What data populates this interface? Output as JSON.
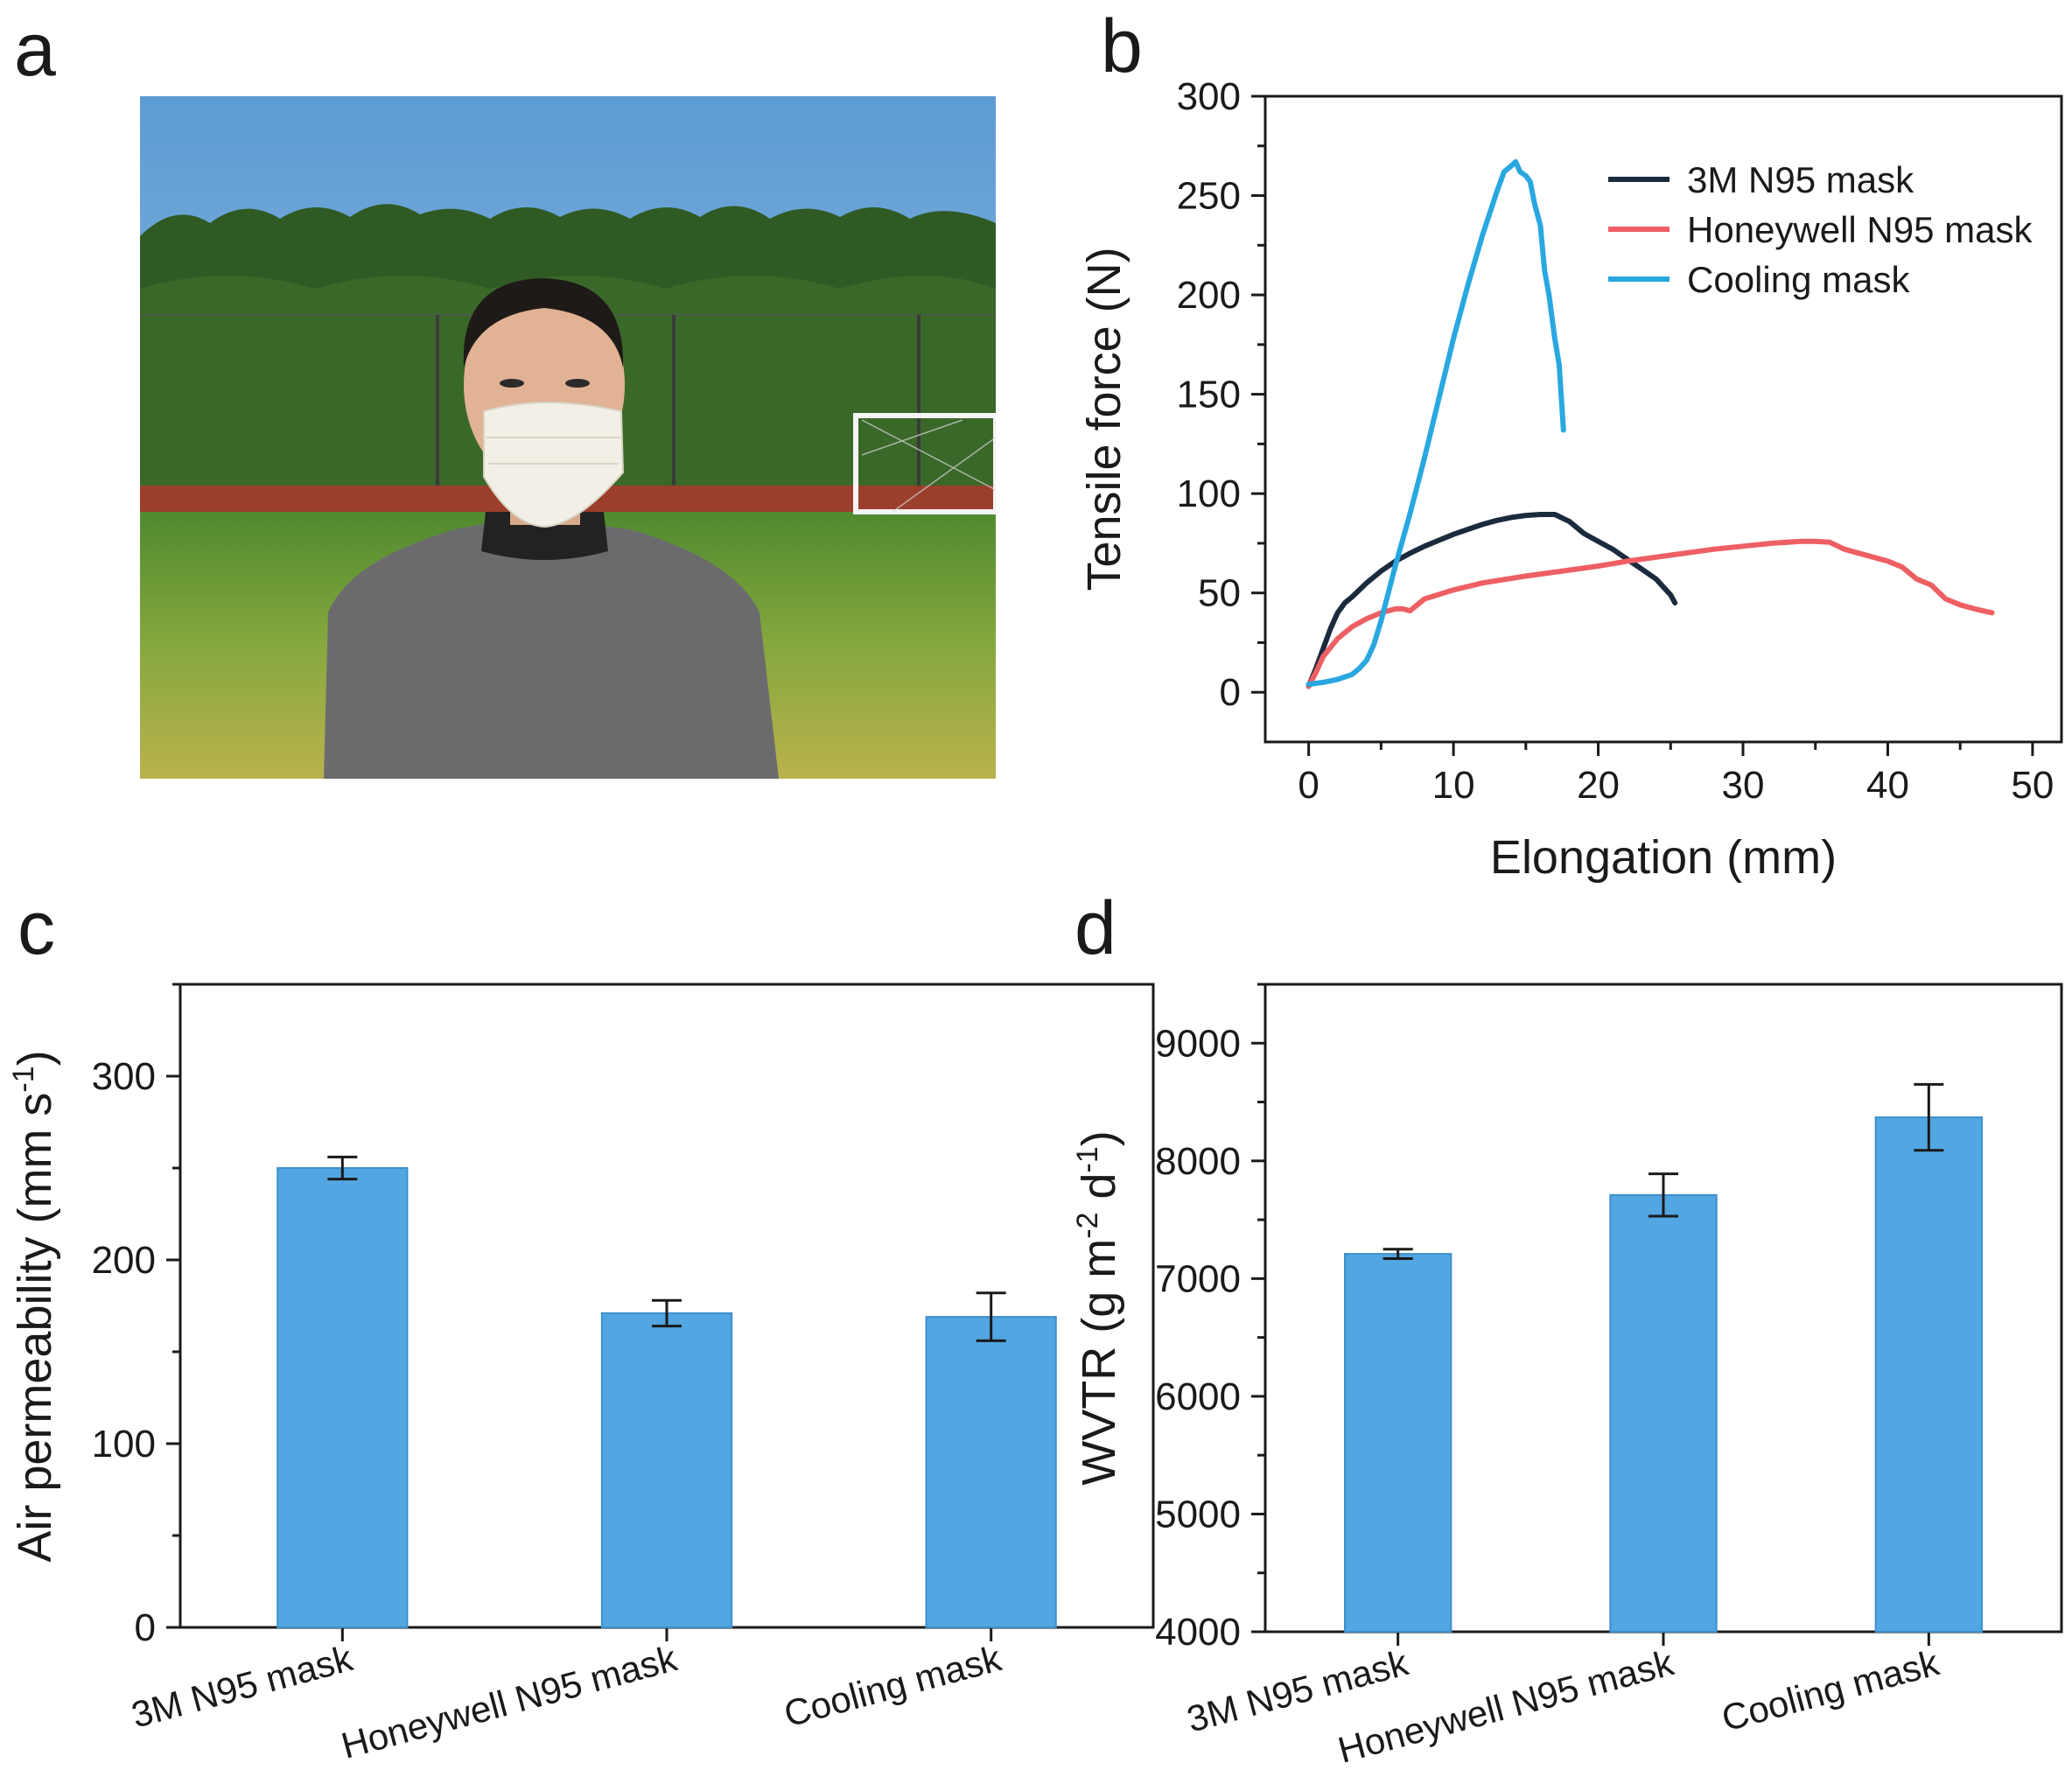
{
  "panels": {
    "a": {
      "label": "a",
      "photo_icon": "masked-person-photo-icon"
    },
    "b": {
      "label": "b"
    },
    "c": {
      "label": "c"
    },
    "d": {
      "label": "d"
    }
  },
  "colors": {
    "bar": "#52a6e1",
    "bar_edge": "#3d8fcb",
    "series_3m": "#1b2b3d",
    "series_honeywell": "#ee5f64",
    "series_cooling": "#29a8e0",
    "axis": "#1a1a1a"
  },
  "chart_data": [
    {
      "id": "b",
      "type": "line",
      "xlabel": "Elongation (mm)",
      "ylabel": "Tensile force (N)",
      "xlim": [
        -3,
        52
      ],
      "ylim": [
        -25,
        300
      ],
      "xticks": [
        0,
        10,
        20,
        30,
        40,
        50
      ],
      "yticks": [
        0,
        50,
        100,
        150,
        200,
        250,
        300
      ],
      "legend_position": "top-right",
      "series": [
        {
          "name": "3M N95 mask",
          "color_key": "series_3m",
          "x": [
            0,
            0.5,
            1,
            1.5,
            2,
            2.5,
            3,
            4,
            5,
            6,
            7,
            8,
            9,
            10,
            11,
            12,
            13,
            14,
            15,
            16,
            17,
            18,
            19,
            20,
            21,
            22,
            23,
            24,
            25,
            25.3
          ],
          "y": [
            3,
            12,
            22,
            32,
            40,
            45,
            48,
            55,
            61,
            66,
            70,
            73.5,
            76.5,
            79.5,
            82,
            84.5,
            86.5,
            88,
            89,
            89.5,
            89.5,
            86,
            80,
            76,
            72,
            67,
            62,
            57,
            49,
            45
          ]
        },
        {
          "name": "Honeywell N95 mask",
          "color_key": "series_honeywell",
          "x": [
            0,
            0.5,
            1,
            2,
            3,
            4,
            5,
            6,
            6.5,
            7,
            8,
            10,
            12,
            15,
            18,
            20,
            22,
            25,
            28,
            30,
            32,
            34,
            35,
            36,
            37,
            38,
            39,
            40,
            41,
            42,
            43,
            44,
            45,
            46,
            47.2
          ],
          "y": [
            3,
            10,
            18,
            27,
            33,
            37,
            40,
            42,
            42,
            41,
            47,
            51.5,
            55,
            58.5,
            61.5,
            63.5,
            66,
            69,
            72,
            73.5,
            75,
            76,
            76,
            75.5,
            72,
            70,
            68,
            66,
            63,
            57,
            54,
            47,
            44,
            42,
            40
          ]
        },
        {
          "name": "Cooling mask",
          "color_key": "series_cooling",
          "x": [
            0,
            1,
            2,
            3,
            3.5,
            4,
            4.5,
            5,
            5.5,
            6,
            7,
            8,
            9,
            10,
            11,
            12,
            13,
            13.5,
            14,
            14.3,
            14.6,
            15,
            15.3,
            15.6,
            16,
            16.3,
            16.6,
            17,
            17.3,
            17.6
          ],
          "y": [
            4,
            5,
            6.5,
            9,
            12,
            16,
            24,
            36,
            50,
            64,
            90,
            118,
            148,
            178,
            205,
            230,
            252,
            262,
            265,
            267,
            262,
            260,
            257,
            246,
            235,
            212,
            200,
            178,
            165,
            132
          ]
        }
      ]
    },
    {
      "id": "c",
      "type": "bar",
      "xlabel": "",
      "ylabel_main": "Air permeability (mm s",
      "ylabel_sup": "-1",
      "ylabel_end": ")",
      "categories": [
        "3M N95 mask",
        "Honeywell N95 mask",
        "Cooling mask"
      ],
      "values": [
        250,
        171,
        169
      ],
      "errors": [
        6,
        7,
        13
      ],
      "ylim": [
        0,
        350
      ],
      "yticks": [
        0,
        100,
        200,
        300
      ]
    },
    {
      "id": "d",
      "type": "bar",
      "xlabel": "",
      "ylabel_parts": [
        "WVTR (g m",
        "-2",
        " d",
        "-1",
        ")"
      ],
      "categories": [
        "3M N95 mask",
        "Honeywell N95 mask",
        "Cooling mask"
      ],
      "values": [
        7210,
        7710,
        8370
      ],
      "errors": [
        40,
        180,
        280
      ],
      "ylim": [
        4000,
        9500
      ],
      "yticks": [
        4000,
        5000,
        6000,
        7000,
        8000,
        9000
      ]
    }
  ]
}
